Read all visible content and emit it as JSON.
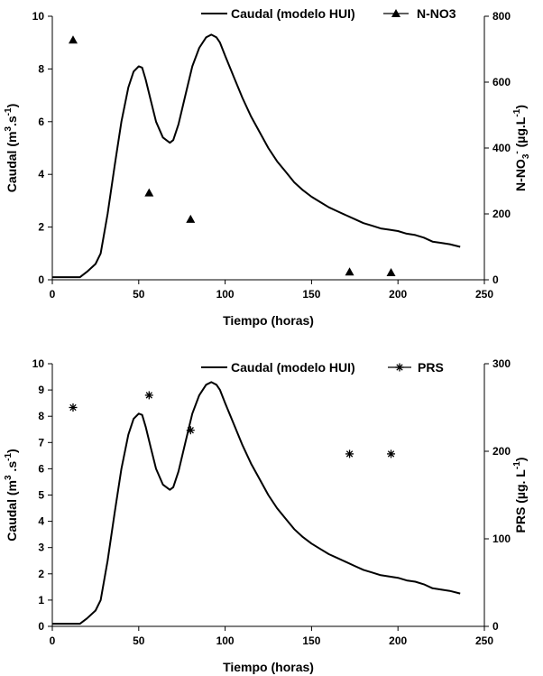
{
  "chart_data": [
    {
      "type": "line",
      "legend_position": "top-right",
      "xlabel": "Tiempo (horas)",
      "ylabel": {
        "main": "Caudal (m",
        "sup1": "3",
        "mid": ".s",
        "sup2": "-1",
        "end": ")"
      },
      "y2label": {
        "main": "N-NO",
        "sub": "3",
        "sup1": "-",
        "mid": " (µg.L",
        "sup2": "-1",
        "end": ")"
      },
      "xlim": [
        0,
        250
      ],
      "ylim": [
        0,
        10
      ],
      "y2lim": [
        0,
        800
      ],
      "xticks": [
        "0",
        "50",
        "100",
        "150",
        "200",
        "250"
      ],
      "yticks": [
        "0",
        "2",
        "4",
        "6",
        "8",
        "10"
      ],
      "y2ticks": [
        "0",
        "200",
        "400",
        "600",
        "800"
      ],
      "series": [
        {
          "name": "Caudal (modelo HUI)",
          "axis": "left",
          "style": "line",
          "x": [
            0,
            13,
            16,
            20,
            25,
            28,
            32,
            36,
            40,
            44,
            47,
            50,
            52,
            54,
            57,
            60,
            64,
            68,
            70,
            73,
            77,
            81,
            85,
            89,
            92,
            95,
            97,
            100,
            105,
            110,
            115,
            120,
            125,
            130,
            135,
            140,
            145,
            150,
            155,
            160,
            165,
            170,
            175,
            180,
            185,
            190,
            195,
            200,
            205,
            210,
            215,
            220,
            225,
            230,
            236
          ],
          "values": [
            0.1,
            0.1,
            0.1,
            0.3,
            0.6,
            1.0,
            2.5,
            4.3,
            6.0,
            7.3,
            7.9,
            8.1,
            8.05,
            7.6,
            6.8,
            6.0,
            5.4,
            5.2,
            5.3,
            5.9,
            7.0,
            8.1,
            8.8,
            9.2,
            9.3,
            9.2,
            9.0,
            8.5,
            7.7,
            6.9,
            6.2,
            5.6,
            5.0,
            4.5,
            4.1,
            3.7,
            3.4,
            3.15,
            2.95,
            2.75,
            2.6,
            2.45,
            2.3,
            2.15,
            2.05,
            1.95,
            1.9,
            1.85,
            1.75,
            1.7,
            1.6,
            1.45,
            1.4,
            1.35,
            1.25
          ]
        },
        {
          "name": "N-NO3",
          "axis": "right",
          "style": "triangle",
          "x": [
            12,
            56,
            80,
            172,
            196
          ],
          "values": [
            728,
            264,
            184,
            24,
            22
          ]
        }
      ]
    },
    {
      "type": "line",
      "legend_position": "top-right",
      "xlabel": "Tiempo (horas)",
      "ylabel": {
        "main": "Caudal (m",
        "sup1": "3",
        "mid": " .s",
        "sup2": "-1",
        "end": ")"
      },
      "y2label": {
        "main": "PRS (µg. L",
        "sup1": "-1",
        "end": ")"
      },
      "xlim": [
        0,
        250
      ],
      "ylim": [
        0,
        10
      ],
      "y2lim": [
        0,
        300
      ],
      "xticks": [
        "0",
        "50",
        "100",
        "150",
        "200",
        "250"
      ],
      "yticks": [
        "0",
        "1",
        "2",
        "3",
        "4",
        "5",
        "6",
        "7",
        "8",
        "9",
        "10"
      ],
      "y2ticks": [
        "0",
        "100",
        "200",
        "300"
      ],
      "series": [
        {
          "name": "Caudal (modelo HUI)",
          "axis": "left",
          "style": "line",
          "x": [
            0,
            13,
            16,
            20,
            25,
            28,
            32,
            36,
            40,
            44,
            47,
            50,
            52,
            54,
            57,
            60,
            64,
            68,
            70,
            73,
            77,
            81,
            85,
            89,
            92,
            95,
            97,
            100,
            105,
            110,
            115,
            120,
            125,
            130,
            135,
            140,
            145,
            150,
            155,
            160,
            165,
            170,
            175,
            180,
            185,
            190,
            195,
            200,
            205,
            210,
            215,
            220,
            225,
            230,
            236
          ],
          "values": [
            0.1,
            0.1,
            0.1,
            0.3,
            0.6,
            1.0,
            2.5,
            4.3,
            6.0,
            7.3,
            7.9,
            8.1,
            8.05,
            7.6,
            6.8,
            6.0,
            5.4,
            5.2,
            5.3,
            5.9,
            7.0,
            8.1,
            8.8,
            9.2,
            9.3,
            9.2,
            9.0,
            8.5,
            7.7,
            6.9,
            6.2,
            5.6,
            5.0,
            4.5,
            4.1,
            3.7,
            3.4,
            3.15,
            2.95,
            2.75,
            2.6,
            2.45,
            2.3,
            2.15,
            2.05,
            1.95,
            1.9,
            1.85,
            1.75,
            1.7,
            1.6,
            1.45,
            1.4,
            1.35,
            1.25
          ]
        },
        {
          "name": "PRS",
          "axis": "right",
          "style": "asterisk",
          "x": [
            12,
            56,
            80,
            172,
            196
          ],
          "values": [
            250,
            264,
            224,
            197,
            197
          ]
        }
      ]
    }
  ]
}
